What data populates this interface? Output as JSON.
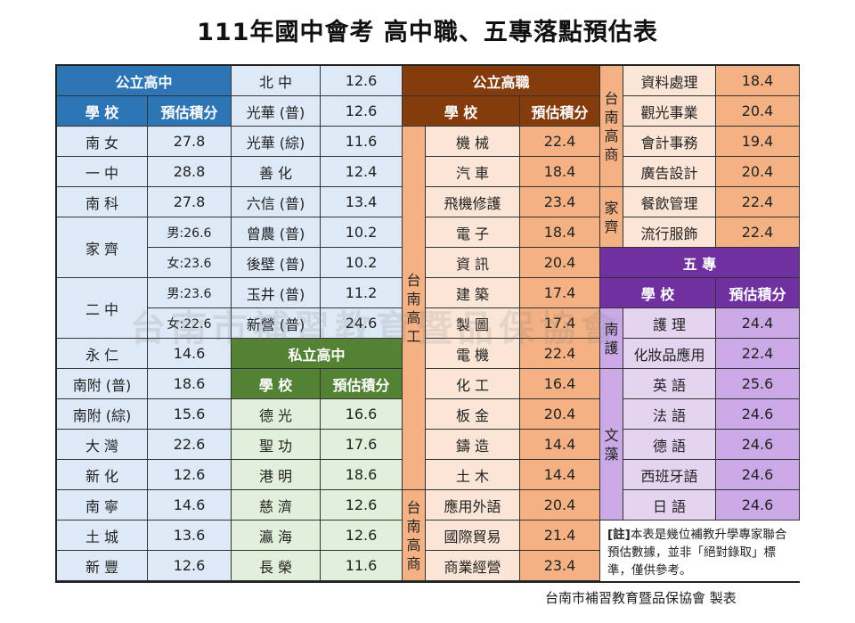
{
  "title": "111年國中會考 高中職、五專落點預估表",
  "colors": {
    "public_hs": "#2e75b6",
    "public_hs_cell": "#dde9f6",
    "public_hs_cell_alt": "#bdd6ee",
    "private_hs": "#548235",
    "private_hs_cell": "#e2efda",
    "vocational": "#843c0c",
    "vocational_cell": "#fbe5d6",
    "vocational_cell_alt": "#f4b183",
    "junior_college": "#7030a0",
    "junior_college_cell": "#e4d4f0",
    "junior_college_cell_alt": "#cba8e6"
  },
  "public_hs": {
    "header": "公立高中",
    "col_school": "學 校",
    "col_score": "預估積分",
    "rows": [
      {
        "school": "南 女",
        "score": "27.8"
      },
      {
        "school": "一 中",
        "score": "28.8"
      },
      {
        "school": "南 科",
        "score": "27.8"
      },
      {
        "school": "家 齊",
        "boy": "男:26.6",
        "girl": "女:23.6"
      },
      {
        "school": "二 中",
        "boy": "男:23.6",
        "girl": "女:22.6"
      },
      {
        "school": "永 仁",
        "score": "14.6"
      },
      {
        "school": "南附 (普)",
        "score": "18.6"
      },
      {
        "school": "南附 (綜)",
        "score": "15.6"
      },
      {
        "school": "大 灣",
        "score": "22.6"
      },
      {
        "school": "新 化",
        "score": "12.6"
      },
      {
        "school": "南 寧",
        "score": "14.6"
      },
      {
        "school": "土 城",
        "score": "13.6"
      },
      {
        "school": "新 豐",
        "score": "12.6"
      }
    ]
  },
  "public_hs2": {
    "rows": [
      {
        "school": "北 中",
        "score": "12.6"
      },
      {
        "school": "光華 (普)",
        "score": "12.6"
      },
      {
        "school": "光華 (綜)",
        "score": "11.6"
      },
      {
        "school": "善 化",
        "score": "12.4"
      },
      {
        "school": "六信 (普)",
        "score": "13.4"
      },
      {
        "school": "曾農 (普)",
        "score": "10.2"
      },
      {
        "school": "後壁 (普)",
        "score": "10.2"
      },
      {
        "school": "玉井 (普)",
        "score": "11.2"
      },
      {
        "school": "新營 (普)",
        "score": "24.6"
      }
    ]
  },
  "private_hs": {
    "header": "私立高中",
    "col_school": "學 校",
    "col_score": "預估積分",
    "rows": [
      {
        "school": "德 光",
        "score": "16.6"
      },
      {
        "school": "聖 功",
        "score": "17.6"
      },
      {
        "school": "港 明",
        "score": "18.6"
      },
      {
        "school": "慈 濟",
        "score": "12.6"
      },
      {
        "school": "瀛 海",
        "score": "12.6"
      },
      {
        "school": "長 榮",
        "score": "11.6"
      }
    ]
  },
  "vocational": {
    "header": "公立高職",
    "col_school": "學 校",
    "col_score": "預估積分",
    "group1": {
      "school": [
        "台",
        "南",
        "高",
        "工"
      ],
      "rows": [
        {
          "dept": "機 械",
          "score": "22.4"
        },
        {
          "dept": "汽 車",
          "score": "18.4"
        },
        {
          "dept": "飛機修護",
          "score": "23.4"
        },
        {
          "dept": "電 子",
          "score": "18.4"
        },
        {
          "dept": "資 訊",
          "score": "20.4"
        },
        {
          "dept": "建 築",
          "score": "17.4"
        },
        {
          "dept": "製 圖",
          "score": "17.4"
        },
        {
          "dept": "電 機",
          "score": "22.4"
        },
        {
          "dept": "化 工",
          "score": "16.4"
        },
        {
          "dept": "板 金",
          "score": "20.4"
        },
        {
          "dept": "鑄 造",
          "score": "14.4"
        },
        {
          "dept": "土 木",
          "score": "14.4"
        }
      ]
    },
    "group2": {
      "school": [
        "台",
        "南",
        "高",
        "商"
      ],
      "rows": [
        {
          "dept": "應用外語",
          "score": "20.4"
        },
        {
          "dept": "國際貿易",
          "score": "21.4"
        },
        {
          "dept": "商業經營",
          "score": "23.4"
        }
      ]
    }
  },
  "vocational2": {
    "group_shang": {
      "school": [
        "台",
        "南",
        "高",
        "商"
      ],
      "rows": [
        {
          "dept": "資料處理",
          "score": "18.4"
        },
        {
          "dept": "觀光事業",
          "score": "20.4"
        },
        {
          "dept": "會計事務",
          "score": "19.4"
        },
        {
          "dept": "廣告設計",
          "score": "20.4"
        }
      ]
    },
    "group_jia": {
      "school": [
        "家",
        "齊"
      ],
      "rows": [
        {
          "dept": "餐飲管理",
          "score": "22.4"
        },
        {
          "dept": "流行服飾",
          "score": "22.4"
        }
      ]
    }
  },
  "junior_college": {
    "header": "五 專",
    "col_school": "學 校",
    "col_score": "預估積分",
    "group_nanhu": {
      "school": [
        "南",
        "護"
      ],
      "rows": [
        {
          "dept": "護 理",
          "score": "24.4"
        },
        {
          "dept": "化妝品應用",
          "score": "22.4"
        }
      ]
    },
    "group_wenzao": {
      "school": [
        "文",
        "藻"
      ],
      "rows": [
        {
          "dept": "英 語",
          "score": "25.6"
        },
        {
          "dept": "法 語",
          "score": "24.6"
        },
        {
          "dept": "德 語",
          "score": "24.6"
        },
        {
          "dept": "西班牙語",
          "score": "24.6"
        },
        {
          "dept": "日 語",
          "score": "24.6"
        }
      ]
    }
  },
  "note": {
    "label": "[註]",
    "text": "本表是幾位補教升學專家聯合預估數據，並非「絕對錄取」標準，僅供參考。"
  },
  "watermark": "台南市補習教育暨品保協會",
  "footer": "台南市補習教育暨品保協會 製表"
}
